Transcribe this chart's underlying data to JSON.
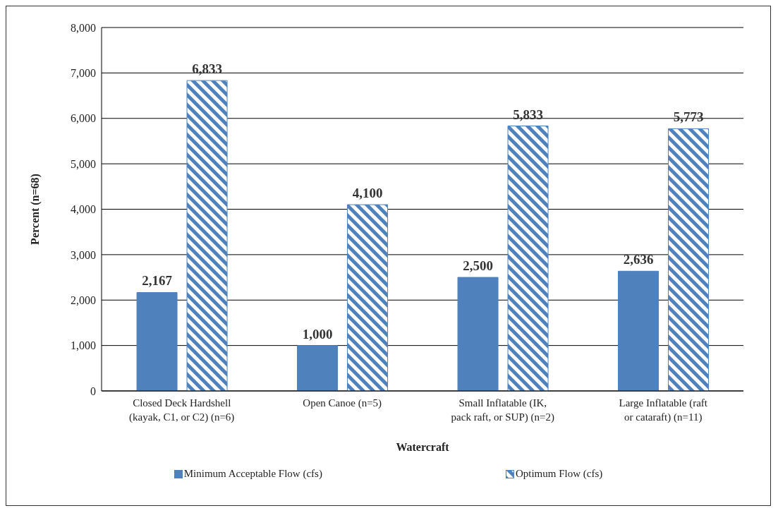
{
  "chart_data": {
    "type": "bar",
    "xlabel": "Watercraft",
    "ylabel": "Percent (n=68)",
    "categories": [
      "Closed Deck Hardshell (kayak, C1, or C2) (n=6)",
      "Open Canoe (n=5)",
      "Small Inflatable (IK, pack raft, or SUP) (n=2)",
      "Large Inflatable (raft or cataraft) (n=11)"
    ],
    "series": [
      {
        "name": "Minimum Acceptable Flow (cfs)",
        "color": "#4f81bd",
        "values": [
          2167,
          1000,
          2500,
          2636
        ],
        "value_labels": [
          "2,167",
          "1,000",
          "2,500",
          "2,636"
        ]
      },
      {
        "name": "Optimum Flow (cfs)",
        "color": "#4f81bd",
        "values": [
          6833,
          4100,
          5833,
          5773
        ],
        "value_labels": [
          "6,833",
          "4,100",
          "5,833",
          "5,773"
        ]
      }
    ],
    "ylim": [
      0,
      8000
    ],
    "yticks": [
      0,
      {
        "value": 1000,
        "label": "1,000"
      },
      {
        "value": 2000,
        "label": "2,000"
      },
      {
        "value": 3000,
        "label": "3,000"
      },
      {
        "value": 4000,
        "label": "4,000"
      },
      {
        "value": 5000,
        "label": "5,000"
      },
      {
        "value": 6000,
        "label": "6,000"
      },
      {
        "value": 7000,
        "label": "7,000"
      },
      {
        "value": 8000,
        "label": "8,000"
      }
    ],
    "grid": "y",
    "legend": "bottom"
  }
}
